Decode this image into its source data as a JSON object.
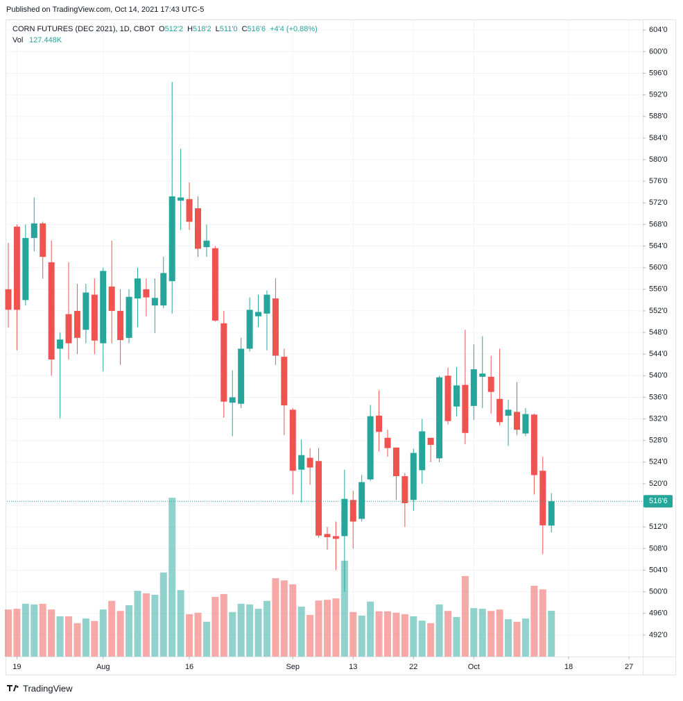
{
  "header": {
    "published": "Published on TradingView.com, Oct 14, 2021 17:43 UTC-5",
    "logo": "TradingView"
  },
  "chart_data": {
    "type": "candlestick",
    "title": "CORN FUTURES (DEC 2021), 1D, CBOT",
    "ohlc_names": [
      "O",
      "H",
      "L",
      "C"
    ],
    "ohlc_labels": [
      "512'2",
      "518'2",
      "511'0",
      "516'6"
    ],
    "change_label": "+4'4 (+0.88%)",
    "volume_name": "Vol",
    "volume_label": "127.448K",
    "last_price_label": "516'6",
    "up_color": "#26a69a",
    "down_color": "#ef5350",
    "open": [
      556,
      567.6,
      554,
      565.5,
      568.2,
      561,
      545,
      551.4,
      552,
      548.5,
      555,
      546,
      556.5,
      552,
      547,
      554.3,
      556,
      553,
      553,
      557.5,
      572.4,
      572.7,
      571,
      563.8,
      563.6,
      549.7,
      535,
      534.8,
      545,
      551,
      551.5,
      554.3,
      543.5,
      533.7,
      522.6,
      524.8,
      524.2,
      510.7,
      510.3,
      510.3,
      517,
      513.5,
      520.8,
      532.6,
      528.5,
      526.7,
      521.4,
      517,
      522.5,
      528.5,
      524.7,
      540,
      534.3,
      538.3,
      534.4,
      539.8,
      539.8,
      535.7,
      532.6,
      533.3,
      529.3,
      532.8,
      522.4,
      512.25
    ],
    "high": [
      564.6,
      568,
      568,
      573,
      568.5,
      565,
      548,
      561,
      557,
      557,
      558,
      560,
      565,
      556,
      556,
      560,
      558,
      558,
      562,
      594.4,
      582,
      575.8,
      573.2,
      568,
      564,
      552,
      541,
      547,
      554.5,
      555,
      555.8,
      558,
      545,
      534,
      528.2,
      526.6,
      526.6,
      512,
      513,
      522.6,
      518.7,
      521.6,
      534.6,
      537.3,
      530,
      526.7,
      522,
      526.5,
      532,
      528.5,
      540,
      541.5,
      541.6,
      548.5,
      545.8,
      547.3,
      543.7,
      545,
      535.5,
      538.8,
      534,
      533,
      525,
      518.25
    ],
    "low": [
      548.9,
      544.7,
      553,
      563,
      558,
      540,
      532.1,
      543,
      544,
      546,
      544,
      540.8,
      546,
      542,
      546,
      549,
      551,
      547.9,
      552.5,
      551.5,
      567,
      567,
      562,
      562,
      550,
      532.2,
      528.8,
      534,
      544.5,
      549,
      544.7,
      542,
      529,
      518,
      516.5,
      519.8,
      510,
      507.8,
      504,
      500,
      508,
      513,
      520.5,
      526,
      525,
      517,
      512,
      515,
      520,
      524,
      524,
      531,
      532.5,
      527.3,
      531.8,
      534,
      533,
      530.8,
      527,
      529,
      528.8,
      518,
      507,
      511
    ],
    "close": [
      552.2,
      552.2,
      565.5,
      568.2,
      562,
      543,
      546.7,
      546,
      547,
      555.4,
      546.5,
      559.4,
      552,
      546.6,
      554.6,
      558,
      554.5,
      554.4,
      559,
      573.2,
      573,
      568.5,
      563.5,
      565,
      550.2,
      535.2,
      536,
      545,
      552.2,
      551.8,
      555,
      543.7,
      534.5,
      522.4,
      525.3,
      523,
      510.4,
      510.1,
      509.8,
      517.2,
      513,
      520.3,
      532.5,
      529.6,
      526.6,
      521.4,
      516.4,
      525.7,
      529.7,
      527.2,
      539.7,
      531.6,
      538.2,
      529.4,
      541.2,
      540.4,
      537,
      531.4,
      533.7,
      530,
      532.9,
      521.6,
      512.3,
      516.75
    ],
    "volume": [
      131,
      133,
      147,
      145,
      147,
      131,
      112,
      112,
      93,
      106,
      99,
      131,
      155,
      127,
      143,
      183,
      176,
      172,
      234,
      442,
      185,
      118,
      122,
      97,
      166,
      174,
      124,
      147,
      145,
      133,
      155,
      218,
      212,
      201,
      139,
      116,
      156,
      158,
      162,
      267,
      124,
      114,
      153,
      126,
      126,
      122,
      118,
      112,
      100,
      93,
      145,
      127,
      110,
      224,
      135,
      133,
      127,
      131,
      104,
      97,
      106,
      197,
      187,
      127.448
    ],
    "xlim": [
      -0.16,
      73.6
    ],
    "xticks": [
      {
        "value": 1,
        "label": "19"
      },
      {
        "value": 11,
        "label": "Aug"
      },
      {
        "value": 21,
        "label": "16"
      },
      {
        "value": 33,
        "label": "Sep"
      },
      {
        "value": 40,
        "label": "13"
      },
      {
        "value": 47,
        "label": "22"
      },
      {
        "value": 54,
        "label": "Oct"
      },
      {
        "value": 65,
        "label": "18"
      },
      {
        "value": 72,
        "label": "27"
      }
    ],
    "ylim": [
      488,
      605.7
    ],
    "y2lim": [
      0,
      1769
    ],
    "yticks": [
      {
        "value": 492,
        "label": "492'0"
      },
      {
        "value": 496,
        "label": "496'0"
      },
      {
        "value": 500,
        "label": "500'0"
      },
      {
        "value": 504,
        "label": "504'0"
      },
      {
        "value": 508,
        "label": "508'0"
      },
      {
        "value": 512,
        "label": "512'0"
      },
      {
        "value": 516,
        "label": "516'0"
      },
      {
        "value": 520,
        "label": "520'0"
      },
      {
        "value": 524,
        "label": "524'0"
      },
      {
        "value": 528,
        "label": "528'0"
      },
      {
        "value": 532,
        "label": "532'0"
      },
      {
        "value": 536,
        "label": "536'0"
      },
      {
        "value": 540,
        "label": "540'0"
      },
      {
        "value": 544,
        "label": "544'0"
      },
      {
        "value": 548,
        "label": "548'0"
      },
      {
        "value": 552,
        "label": "552'0"
      },
      {
        "value": 556,
        "label": "556'0"
      },
      {
        "value": 560,
        "label": "560'0"
      },
      {
        "value": 564,
        "label": "564'0"
      },
      {
        "value": 568,
        "label": "568'0"
      },
      {
        "value": 572,
        "label": "572'0"
      },
      {
        "value": 576,
        "label": "576'0"
      },
      {
        "value": 580,
        "label": "580'0"
      },
      {
        "value": 584,
        "label": "584'0"
      },
      {
        "value": 588,
        "label": "588'0"
      },
      {
        "value": 592,
        "label": "592'0"
      },
      {
        "value": 596,
        "label": "596'0"
      },
      {
        "value": 600,
        "label": "600'0"
      },
      {
        "value": 604,
        "label": "604'0"
      }
    ],
    "grid": true
  }
}
